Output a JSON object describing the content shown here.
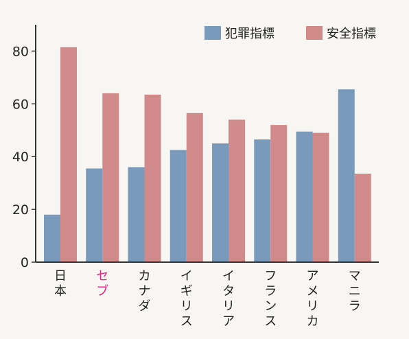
{
  "chart_data": {
    "type": "bar",
    "categories": [
      "日本",
      "セブ",
      "カナダ",
      "イギリス",
      "イタリア",
      "フランス",
      "アメリカ",
      "マニラ"
    ],
    "highlight_category": "セブ",
    "series": [
      {
        "name": "犯罪指標",
        "color": "#7a9abb",
        "values": [
          18,
          35.5,
          36,
          42.5,
          45,
          46.5,
          49.5,
          65.5
        ]
      },
      {
        "name": "安全指標",
        "color": "#d18a8a",
        "values": [
          81.5,
          64,
          63.5,
          56.5,
          54,
          52,
          49,
          33.5
        ]
      }
    ],
    "ylim": [
      0,
      90
    ],
    "yticks": [
      0,
      20,
      40,
      60,
      80
    ],
    "xlabel": "",
    "ylabel": "",
    "title": "",
    "legend_position": "top-right",
    "grid": false,
    "colors": {
      "axis": "#333333",
      "text": "#222222",
      "highlight_text": "#e6237e"
    }
  }
}
